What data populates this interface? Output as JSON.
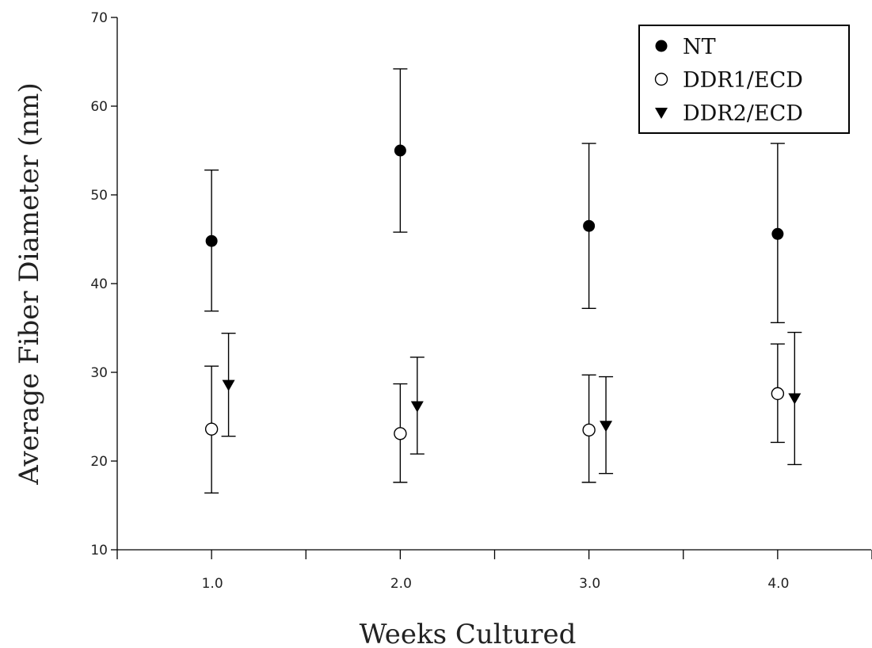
{
  "chart_data": {
    "type": "scatter",
    "title": "",
    "xlabel": "Weeks Cultured",
    "ylabel": "Average Fiber Diameter (nm)",
    "xlim": [
      0.5,
      4.5
    ],
    "ylim": [
      10,
      70
    ],
    "x_ticks": [
      "1.0",
      "2.0",
      "3.0",
      "4.0"
    ],
    "x_tick_values": [
      1,
      2,
      3,
      4
    ],
    "y_ticks": [
      10,
      20,
      30,
      40,
      50,
      60,
      70
    ],
    "grid": false,
    "legend_position": "top-right",
    "error_bars": true,
    "series": [
      {
        "name": "NT",
        "marker": "filled-circle",
        "color": "#000000",
        "x": [
          1,
          2,
          3,
          4
        ],
        "y": [
          44.8,
          55.0,
          46.5,
          45.6
        ],
        "error_low": [
          36.9,
          45.8,
          37.2,
          35.6
        ],
        "error_high": [
          52.8,
          64.2,
          55.8,
          55.8
        ]
      },
      {
        "name": "DDR1/ECD",
        "marker": "open-circle",
        "color": "#000000",
        "x": [
          1,
          2,
          3,
          4
        ],
        "y": [
          23.6,
          23.1,
          23.5,
          27.6
        ],
        "error_low": [
          16.4,
          17.6,
          17.6,
          22.1
        ],
        "error_high": [
          30.7,
          28.7,
          29.7,
          33.2
        ]
      },
      {
        "name": "DDR2/ECD",
        "marker": "filled-triangle-down",
        "color": "#000000",
        "x": [
          1.09,
          2.09,
          3.09,
          4.09
        ],
        "y": [
          28.6,
          26.2,
          24.0,
          27.1
        ],
        "error_low": [
          22.8,
          20.8,
          18.6,
          19.6
        ],
        "error_high": [
          34.4,
          31.7,
          29.5,
          34.5
        ]
      }
    ]
  }
}
